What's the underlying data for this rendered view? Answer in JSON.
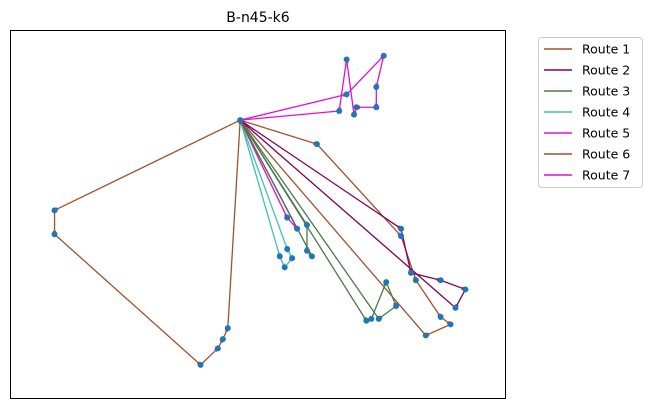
{
  "chart_data": {
    "type": "line",
    "title": "B-n45-k6",
    "xlabel": "",
    "ylabel": "",
    "axes_visible": false,
    "grid": false,
    "legend_placement": "outside-top-right",
    "xlim": [
      0,
      100
    ],
    "ylim": [
      0,
      100
    ],
    "depot": [
      46.5,
      75.5
    ],
    "series": [
      {
        "name": "Route 1",
        "color": "#a0522d",
        "points": [
          [
            46.5,
            75.5
          ],
          [
            62,
            69
          ],
          [
            79,
            44
          ],
          [
            82,
            32
          ],
          [
            87,
            22
          ],
          [
            89,
            20
          ],
          [
            84,
            17
          ],
          [
            46.5,
            75.5
          ]
        ]
      },
      {
        "name": "Route 2",
        "color": "#800060",
        "points": [
          [
            46.5,
            75.5
          ],
          [
            79,
            46
          ],
          [
            81,
            34
          ],
          [
            87,
            32
          ],
          [
            92,
            29.5
          ],
          [
            90,
            24.5
          ],
          [
            46.5,
            75.5
          ]
        ]
      },
      {
        "name": "Route 3",
        "color": "#4a7a4a",
        "points": [
          [
            46.5,
            75.5
          ],
          [
            72,
            21
          ],
          [
            73,
            21.5
          ],
          [
            76,
            31.5
          ],
          [
            78,
            25
          ],
          [
            74.5,
            21.5
          ],
          [
            46.5,
            75.5
          ]
        ]
      },
      {
        "name": "Route 4",
        "color": "#40c0b0",
        "points": [
          [
            46.5,
            75.5
          ],
          [
            54.5,
            38.5
          ],
          [
            55.5,
            35.5
          ],
          [
            57,
            38
          ],
          [
            56,
            40.5
          ],
          [
            46.5,
            75.5
          ]
        ]
      },
      {
        "name": "Route 5",
        "color": "#e010d0",
        "points": [
          [
            46.5,
            75.5
          ],
          [
            56,
            49
          ],
          [
            58,
            46
          ],
          [
            46.5,
            75.5
          ]
        ]
      },
      {
        "name": "Route 6",
        "color": "#a0522d",
        "points": [
          [
            46.5,
            75.5
          ],
          [
            9,
            51
          ],
          [
            9,
            44.5
          ],
          [
            38.5,
            9
          ],
          [
            42,
            13.5
          ],
          [
            43,
            16
          ],
          [
            44,
            19
          ],
          [
            46.5,
            75.5
          ]
        ]
      },
      {
        "name": "Route 7",
        "color": "#e010d0",
        "points": [
          [
            46.5,
            75.5
          ],
          [
            68,
            82.5
          ],
          [
            75.5,
            93
          ],
          [
            74,
            84.5
          ],
          [
            74,
            79
          ],
          [
            70,
            79
          ],
          [
            69.5,
            77
          ],
          [
            68,
            92
          ],
          [
            66.5,
            78
          ],
          [
            46.5,
            75.5
          ]
        ]
      },
      {
        "name": "",
        "color": "#4a7a4a",
        "points": [
          [
            46.5,
            75.5
          ],
          [
            60,
            47
          ],
          [
            60,
            40
          ],
          [
            61,
            38.5
          ],
          [
            46.5,
            75.5
          ]
        ]
      }
    ]
  }
}
